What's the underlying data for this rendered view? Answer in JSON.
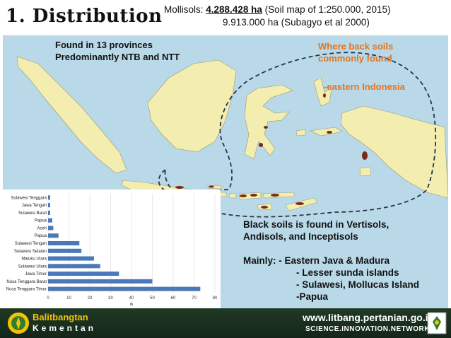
{
  "header": {
    "title": "1. Distribution",
    "line1_prefix": "Mollisols: ",
    "line1_value": "4.288.428 ha",
    "line1_suffix": " (Soil map of 1:250.000, 2015)",
    "line2": "9.913.000 ha (Subagyo et al 2000)"
  },
  "map": {
    "found_line1": "Found in 13 provinces",
    "found_line2": "Predominantly NTB and NTT",
    "where_line1": "Where back soils",
    "where_line2": "commonly found",
    "where_line3": "-eastern Indonesia",
    "colors": {
      "sea": "#b9d9e8",
      "land": "#f3edb0",
      "soil": "#7a2a1a"
    }
  },
  "chart_data": {
    "type": "bar",
    "orientation": "horizontal",
    "categories": [
      "Sulawesi Tenggara",
      "Jawa Tengah",
      "Sulawesi Barat",
      "Papua",
      "Aceh",
      "Papua",
      "Sulawesi Tengah",
      "Sulawesi Selatan",
      "Maluku Utara",
      "Sulawesi Utara",
      "Jawa Timur",
      "Nusa Tenggara Barat",
      "Nusa Tenggara Timur"
    ],
    "values": [
      1,
      1,
      1,
      2,
      2.5,
      5,
      15,
      16,
      22,
      25,
      34,
      50,
      73
    ],
    "xlabel": "n",
    "xlim": [
      0,
      80
    ],
    "xticks": [
      "0",
      "10",
      "20",
      "30",
      "40",
      "50",
      "60",
      "70",
      "80"
    ],
    "grid": true,
    "bar_color": "#4a78b8"
  },
  "notes": {
    "line1": "Black soils is found in Vertisols,",
    "line2": "Andisols, and Inceptisols",
    "line3": "Mainly: - Eastern Java & Madura",
    "line4": "- Lesser sunda islands",
    "line5": "- Sulawesi, Mollucas Island",
    "line6": "-Papua"
  },
  "footer": {
    "org_line1": "Balitbangtan",
    "org_line2": "Kementan",
    "url": "www.litbang.pertanian.go.id",
    "tagline": "SCIENCE.INNOVATION.NETWORKS"
  }
}
